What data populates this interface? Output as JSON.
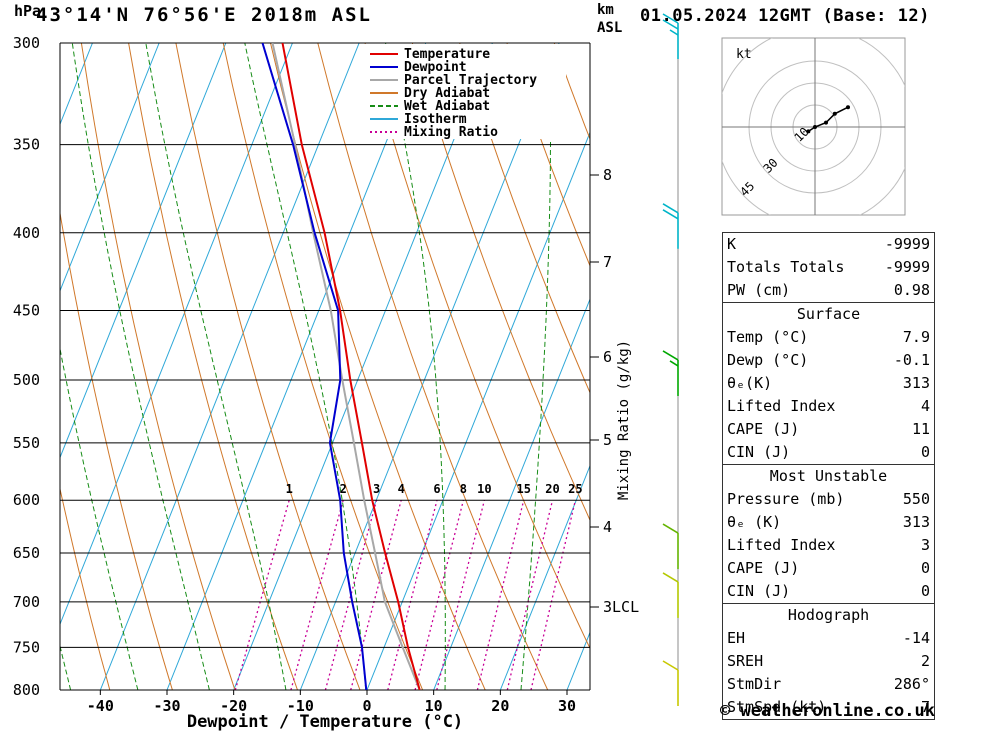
{
  "header": {
    "title": "43°14'N 76°56'E 2018m ASL",
    "datetime": "01.05.2024 12GMT (Base: 12)"
  },
  "footer": {
    "copyright": "© weatheronline.co.uk"
  },
  "axes": {
    "pressure_label": "hPa",
    "pressure_ticks": [
      300,
      350,
      400,
      450,
      500,
      550,
      600,
      650,
      700,
      750,
      800
    ],
    "temp_axis_label": "Dewpoint / Temperature (°C)",
    "temp_ticks": [
      -40,
      -30,
      -20,
      -10,
      0,
      10,
      20,
      30
    ],
    "km_label_line1": "km",
    "km_label_line2": "ASL",
    "km_ticks": [
      {
        "km": 8,
        "y": 175
      },
      {
        "km": 7,
        "y": 262
      },
      {
        "km": 6,
        "y": 357
      },
      {
        "km": 5,
        "y": 440
      },
      {
        "km": 4,
        "y": 527
      },
      {
        "km": 3,
        "y": 607,
        "suffix": "LCL"
      }
    ],
    "mixing_axis_label": "Mixing Ratio (g/kg)"
  },
  "legend": [
    {
      "label": "Temperature",
      "color": "#e00000",
      "dash": ""
    },
    {
      "label": "Dewpoint",
      "color": "#0000d0",
      "dash": ""
    },
    {
      "label": "Parcel Trajectory",
      "color": "#a8a8a8",
      "dash": ""
    },
    {
      "label": "Dry Adiabat",
      "color": "#d0782a",
      "dash": ""
    },
    {
      "label": "Wet Adiabat",
      "color": "#168c16",
      "dash": "5 3"
    },
    {
      "label": "Isotherm",
      "color": "#2fa8d8",
      "dash": ""
    },
    {
      "label": "Mixing Ratio",
      "color": "#c80096",
      "dash": "2 3"
    }
  ],
  "chart_data": {
    "type": "line",
    "title": "Skew-T log-P sounding 43°14'N 76°56'E 2018m ASL",
    "pressure_hPa": [
      800,
      750,
      700,
      650,
      600,
      550,
      500,
      450,
      400,
      350,
      300
    ],
    "series": [
      {
        "name": "Temperature",
        "color": "#e00000",
        "values": [
          7.9,
          3.6,
          -0.6,
          -5.5,
          -10.6,
          -15.6,
          -21.1,
          -26.8,
          -33.8,
          -42.5,
          -51.5
        ]
      },
      {
        "name": "Dewpoint",
        "color": "#0000d0",
        "values": [
          -0.1,
          -3.3,
          -7.5,
          -11.7,
          -15.4,
          -20.4,
          -22.6,
          -27.1,
          -35.3,
          -43.8,
          -54.5
        ]
      },
      {
        "name": "Parcel Trajectory",
        "color": "#a8a8a8",
        "values": [
          7.9,
          2.8,
          -2.6,
          -7.0,
          -11.8,
          -16.8,
          -22.3,
          -28.2,
          -35.5,
          -43.5,
          -53.0
        ]
      }
    ],
    "mixing_ratio_lines_g_kg": [
      1,
      2,
      3,
      4,
      6,
      8,
      10,
      15,
      20,
      25
    ],
    "x_axis_range_surface_C": [
      -46,
      33
    ],
    "pressure_range_hPa": [
      300,
      800
    ],
    "grid": "skew-t: isotherms, dry adiabats, wet adiabats, mixing ratio lines"
  },
  "wind_barbs": [
    {
      "pressure": 300,
      "speed_kt": 25,
      "color": "#00b4c8"
    },
    {
      "pressure": 400,
      "speed_kt": 20,
      "color": "#00b4c8"
    },
    {
      "pressure": 500,
      "speed_kt": 15,
      "color": "#00a800"
    },
    {
      "pressure": 650,
      "speed_kt": 10,
      "color": "#64b400"
    },
    {
      "pressure": 700,
      "speed_kt": 10,
      "color": "#b4c800"
    },
    {
      "pressure": 800,
      "speed_kt": 10,
      "color": "#c8c800"
    }
  ],
  "hodograph": {
    "unit_label": "kt",
    "rings_kt": [
      10,
      20,
      30,
      45
    ],
    "ring_labels": [
      {
        "text": "10",
        "r_kt": 10
      },
      {
        "text": "30",
        "r_kt": 30
      },
      {
        "text": "45",
        "r_kt": 45
      }
    ],
    "trace_uv_kt": [
      [
        -3,
        -2
      ],
      [
        0,
        0
      ],
      [
        5,
        2
      ],
      [
        9,
        6
      ],
      [
        15,
        9
      ]
    ]
  },
  "table": {
    "top_rows": [
      {
        "label": "K",
        "value": "-9999"
      },
      {
        "label": "Totals Totals",
        "value": "-9999"
      },
      {
        "label": "PW (cm)",
        "value": "0.98"
      }
    ],
    "sections": [
      {
        "header": "Surface",
        "rows": [
          {
            "label": "Temp (°C)",
            "value": "7.9"
          },
          {
            "label": "Dewp (°C)",
            "value": "-0.1"
          },
          {
            "label": "θₑ(K)",
            "value": "313"
          },
          {
            "label": "Lifted Index",
            "value": "4"
          },
          {
            "label": "CAPE (J)",
            "value": "11"
          },
          {
            "label": "CIN (J)",
            "value": "0"
          }
        ]
      },
      {
        "header": "Most Unstable",
        "rows": [
          {
            "label": "Pressure (mb)",
            "value": "550"
          },
          {
            "label": "θₑ (K)",
            "value": "313"
          },
          {
            "label": "Lifted Index",
            "value": "3"
          },
          {
            "label": "CAPE (J)",
            "value": "0"
          },
          {
            "label": "CIN (J)",
            "value": "0"
          }
        ]
      },
      {
        "header": "Hodograph",
        "rows": [
          {
            "label": "EH",
            "value": "-14"
          },
          {
            "label": "SREH",
            "value": "2"
          },
          {
            "label": "StmDir",
            "value": "286°"
          },
          {
            "label": "StmSpd (kt)",
            "value": "7"
          }
        ]
      }
    ]
  }
}
